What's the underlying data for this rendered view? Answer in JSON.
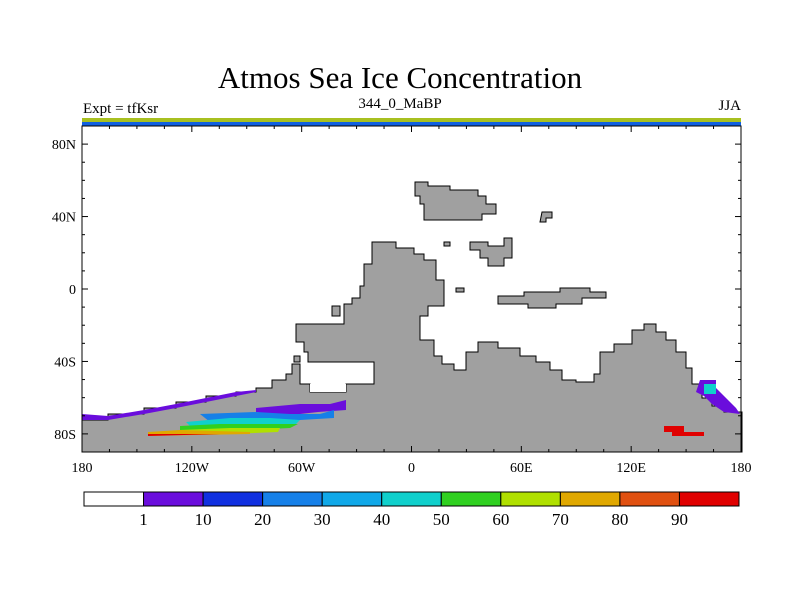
{
  "header": {
    "title": "Atmos Sea Ice Concentration",
    "subtitle": "344_0_MaBP",
    "left_label": "Expt = tfKsr",
    "right_label": "JJA"
  },
  "chart_data": {
    "type": "heatmap",
    "title": "Atmos Sea Ice Concentration",
    "subtitle": "344_0_MaBP",
    "projection": "cylindrical equidistant",
    "xlim": [
      -180,
      180
    ],
    "ylim": [
      -90,
      90
    ],
    "x_ticks": [
      {
        "value": -180,
        "label": "180"
      },
      {
        "value": -120,
        "label": "120W"
      },
      {
        "value": -60,
        "label": "60W"
      },
      {
        "value": 0,
        "label": "0"
      },
      {
        "value": 60,
        "label": "60E"
      },
      {
        "value": 120,
        "label": "120E"
      },
      {
        "value": 180,
        "label": "180"
      }
    ],
    "y_ticks": [
      {
        "value": 80,
        "label": "80N"
      },
      {
        "value": 40,
        "label": "40N"
      },
      {
        "value": 0,
        "label": "0"
      },
      {
        "value": -40,
        "label": "40S"
      },
      {
        "value": -80,
        "label": "80S"
      }
    ],
    "land_color": "#a0a0a0",
    "colorbar": {
      "levels": [
        "1",
        "10",
        "20",
        "30",
        "40",
        "50",
        "60",
        "70",
        "80",
        "90"
      ],
      "colors": [
        "#ffffff",
        "#6a0ddc",
        "#1030e0",
        "#1680e8",
        "#10a8e8",
        "#10d0cc",
        "#30d020",
        "#b0e000",
        "#e0a800",
        "#e05010",
        "#e00000"
      ]
    }
  }
}
